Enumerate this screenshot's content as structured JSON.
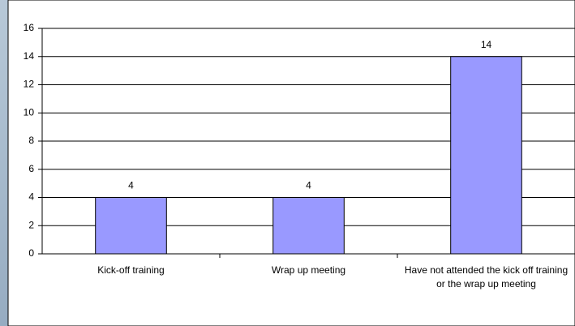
{
  "chart_data": {
    "type": "bar",
    "categories": [
      "Kick-off training",
      "Wrap up meeting",
      "Have not attended the kick off training or the wrap up meeting"
    ],
    "values": [
      4,
      4,
      14
    ],
    "color": "#9999ff",
    "ylim": [
      0,
      16
    ],
    "yticks": [
      0,
      2,
      4,
      6,
      8,
      10,
      12,
      14,
      16
    ],
    "grid": true
  }
}
